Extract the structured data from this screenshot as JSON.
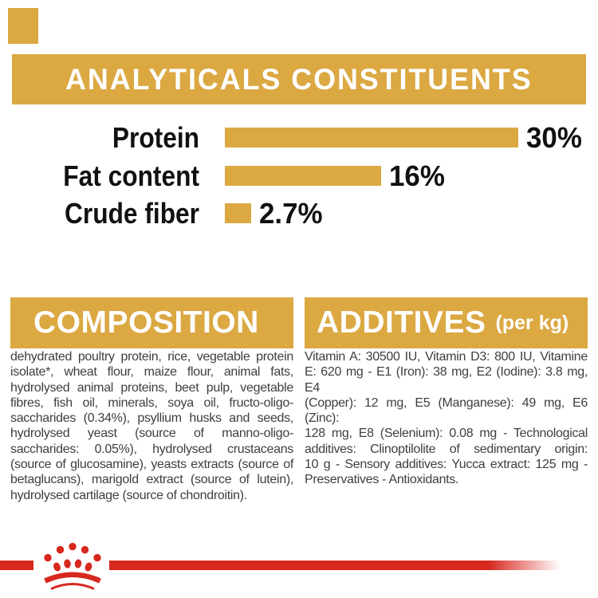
{
  "colors": {
    "gold": "#DBA842",
    "red": "#D7281E",
    "body_text": "#3E3E3D",
    "chart_text": "#111111",
    "header_text": "#FFFFFF"
  },
  "header": {
    "title": "ANALYTICALS CONSTITUENTS"
  },
  "chart_data": {
    "type": "bar",
    "orientation": "horizontal",
    "title": "ANALYTICALS CONSTITUENTS",
    "categories": [
      "Protein",
      "Fat content",
      "Crude fiber"
    ],
    "values": [
      30,
      16,
      2.7
    ],
    "value_labels": [
      "30%",
      "16%",
      "2.7%"
    ],
    "unit": "%",
    "xlim": [
      0,
      30
    ],
    "bar_color": "#DBA842",
    "grid": false,
    "legend": false
  },
  "composition": {
    "title": "COMPOSITION",
    "lines": [
      "dehydrated poultry protein, rice, vegetable protein",
      "isolate*, wheat flour, maize flour, animal fats,",
      "hydrolysed animal proteins, beet pulp, vegetable",
      "fibres, fish oil, minerals, soya oil, fructo-oligo-",
      "saccharides (0.34%), psyllium husks and seeds,",
      "hydrolysed yeast (source of manno-oligo-",
      "saccharides: 0.05%), hydrolysed crustaceans",
      "(source of glucosamine), yeasts extracts (source of",
      "betaglucans), marigold extract (source of lutein),",
      "hydrolysed cartilage (source of chondroitin)."
    ]
  },
  "additives": {
    "title": "ADDITIVES",
    "subtitle": "(per kg)",
    "lines": [
      "Vitamin A: 30500 IU, Vitamin D3: 800 IU, Vitamine",
      "E: 620 mg - E1 (Iron): 38 mg, E2 (Iodine): 3.8 mg, E4",
      "(Copper): 12 mg, E5 (Manganese): 49 mg, E6 (Zinc):",
      "128 mg, E8 (Selenium): 0.08 mg - Technological",
      "additives: Clinoptilolite of sedimentary origin:",
      "10 g - Sensory additives: Yucca extract: 125 mg -",
      "Preservatives - Antioxidants."
    ]
  },
  "footer": {
    "logo": "royal-canin-crown-paw-logo"
  }
}
